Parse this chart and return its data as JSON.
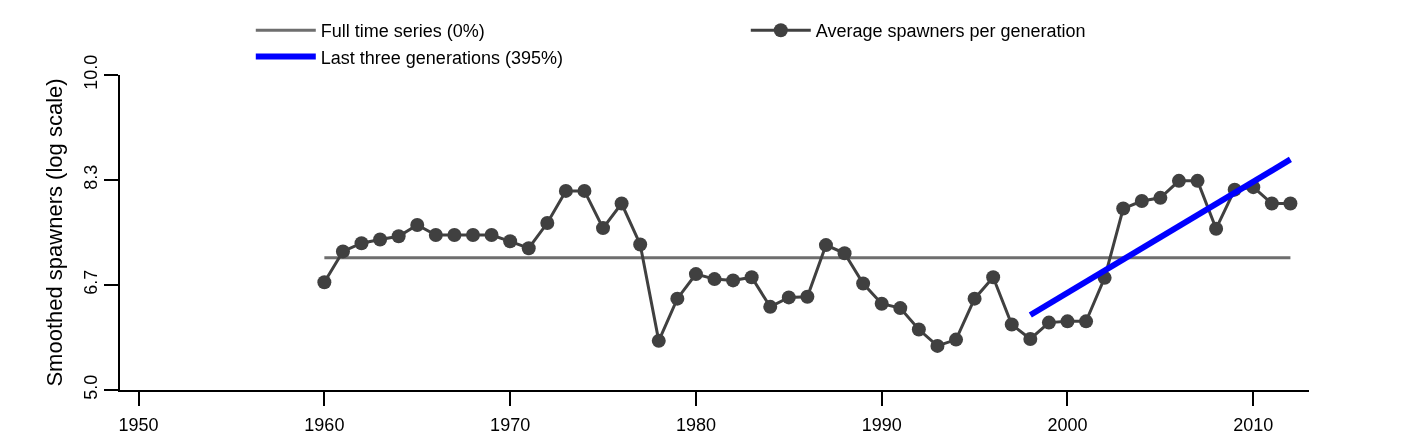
{
  "chart_data": {
    "type": "line",
    "ylabel": "Smoothed spawners (log scale)",
    "xlim": [
      1949,
      2013
    ],
    "xticks": [
      1950,
      1960,
      1970,
      1980,
      1990,
      2000,
      2010
    ],
    "ylim": [
      5,
      10
    ],
    "yticks": [
      {
        "value": 5,
        "label": "5.0"
      },
      {
        "value": 6.6667,
        "label": "6.7"
      },
      {
        "value": 8.3333,
        "label": "8.3"
      },
      {
        "value": 10,
        "label": "10.0"
      }
    ],
    "grid": false,
    "legend": "top",
    "marker": "circle",
    "line_style": "solid",
    "series": [
      {
        "name": "Full time series (0%)",
        "marker": "none",
        "color": "#6e6e6e",
        "x": [
          1960,
          2012
        ],
        "values": [
          7.1,
          7.1
        ]
      },
      {
        "name": "Average spawners per generation",
        "color": "#404040",
        "x": [
          1960,
          1961,
          1962,
          1963,
          1964,
          1965,
          1966,
          1967,
          1968,
          1969,
          1970,
          1971,
          1972,
          1973,
          1974,
          1975,
          1976,
          1977,
          1978,
          1979,
          1980,
          1981,
          1982,
          1983,
          1984,
          1985,
          1986,
          1987,
          1988,
          1989,
          1990,
          1991,
          1992,
          1993,
          1994,
          1995,
          1996,
          1997,
          1998,
          1999,
          2000,
          2001,
          2002,
          2003,
          2004,
          2005,
          2006,
          2007,
          2008,
          2009,
          2010,
          2011,
          2012
        ],
        "values": [
          6.71,
          7.2,
          7.33,
          7.39,
          7.44,
          7.62,
          7.46,
          7.46,
          7.46,
          7.46,
          7.36,
          7.25,
          7.65,
          8.16,
          8.16,
          7.57,
          7.96,
          7.31,
          5.78,
          6.45,
          6.84,
          6.76,
          6.74,
          6.79,
          6.32,
          6.47,
          6.48,
          7.3,
          7.17,
          6.69,
          6.37,
          6.3,
          5.96,
          5.7,
          5.8,
          6.45,
          6.79,
          6.04,
          5.81,
          6.07,
          6.09,
          6.09,
          6.78,
          7.88,
          8.0,
          8.05,
          8.32,
          8.32,
          7.56,
          8.18,
          8.22,
          7.96,
          7.96
        ]
      },
      {
        "name": "Last three generations (395%)",
        "marker": "none",
        "color": "#0000ff",
        "x": [
          1998,
          2012
        ],
        "values": [
          6.19,
          8.66
        ]
      }
    ]
  }
}
